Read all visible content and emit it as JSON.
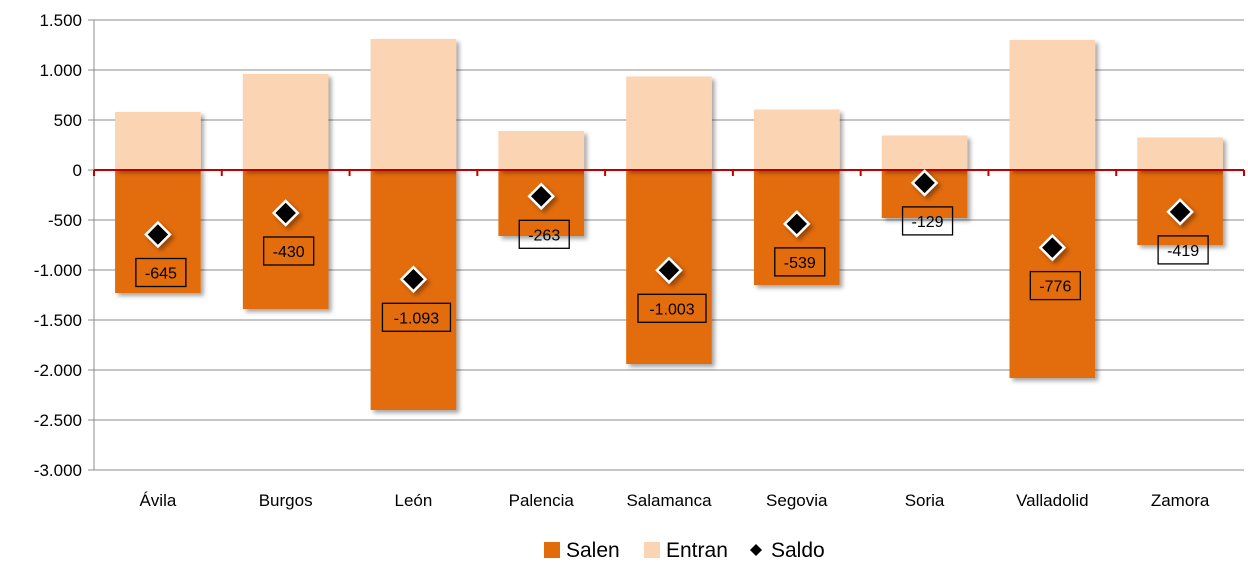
{
  "chart_data": {
    "type": "bar",
    "categories": [
      "Ávila",
      "Burgos",
      "León",
      "Palencia",
      "Salamanca",
      "Segovia",
      "Soria",
      "Valladolid",
      "Zamora"
    ],
    "series": [
      {
        "name": "Salen",
        "kind": "bar",
        "color": "#e36c0a",
        "values": [
          -1230,
          -1390,
          -2400,
          -660,
          -1940,
          -1150,
          -480,
          -2080,
          -750
        ]
      },
      {
        "name": "Entran",
        "kind": "bar",
        "color": "#fbd4b4",
        "values": [
          580,
          960,
          1310,
          390,
          935,
          605,
          345,
          1300,
          325
        ]
      },
      {
        "name": "Saldo",
        "kind": "marker",
        "color": "#000000",
        "values": [
          -645,
          -430,
          -1093,
          -263,
          -1003,
          -539,
          -129,
          -776,
          -419
        ]
      }
    ],
    "data_labels": [
      "-645",
      "-430",
      "-1.093",
      "-263",
      "-1.003",
      "-539",
      "-129",
      "-776",
      "-419"
    ],
    "y_ticks": [
      {
        "value": 1500,
        "label": "1.500"
      },
      {
        "value": 1000,
        "label": "1.000"
      },
      {
        "value": 500,
        "label": "500"
      },
      {
        "value": 0,
        "label": "0"
      },
      {
        "value": -500,
        "label": "-500"
      },
      {
        "value": -1000,
        "label": "-1.000"
      },
      {
        "value": -1500,
        "label": "-1.500"
      },
      {
        "value": -2000,
        "label": "-2.000"
      },
      {
        "value": -2500,
        "label": "-2.500"
      },
      {
        "value": -3000,
        "label": "-3.000"
      }
    ],
    "ylim": [
      -3000,
      1500
    ],
    "grid": true,
    "zero_line_color": "#c00000",
    "legend_position": "bottom",
    "legend": [
      {
        "label": "Salen",
        "symbol": "square",
        "color": "#e36c0a"
      },
      {
        "label": "Entran",
        "symbol": "square",
        "color": "#fbd4b4"
      },
      {
        "label": "Saldo",
        "symbol": "diamond",
        "color": "#000000"
      }
    ]
  }
}
